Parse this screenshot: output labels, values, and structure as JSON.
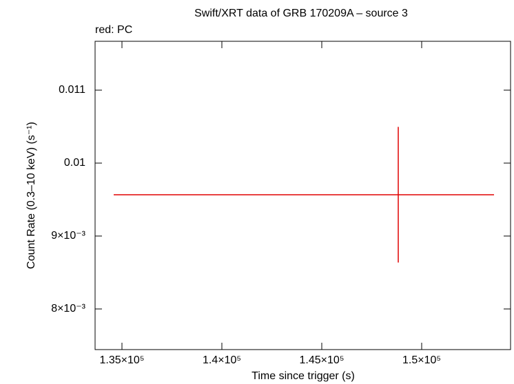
{
  "chart_data": {
    "type": "errorbar",
    "title": "Swift/XRT data of GRB 170209A – source 3",
    "subtitle": "red: PC",
    "x_label": "Time since trigger (s)",
    "y_label": "Count Rate (0.3–10 keV) (s⁻¹)",
    "series": [
      {
        "color": "#e00000",
        "x": [
          148828
        ],
        "x_err_minus": [
          14242
        ],
        "x_err_plus": [
          4793
        ],
        "values": [
          0.009566
        ],
        "y_err": [
          0.00093
        ]
      }
    ],
    "xlim": [
      133655,
      154448
    ],
    "xticks": [
      {
        "value": 135000,
        "label": "1.35×10⁵"
      },
      {
        "value": 140000,
        "label": "1.4×10⁵"
      },
      {
        "value": 145000,
        "label": "1.45×10⁵"
      },
      {
        "value": 150000,
        "label": "1.5×10⁵"
      }
    ],
    "ylim": [
      0.007443,
      0.01167
    ],
    "yticks": [
      {
        "value": 0.008,
        "label": "8×10⁻³"
      },
      {
        "value": 0.009,
        "label": "9×10⁻³"
      },
      0.01,
      0.011
    ]
  }
}
